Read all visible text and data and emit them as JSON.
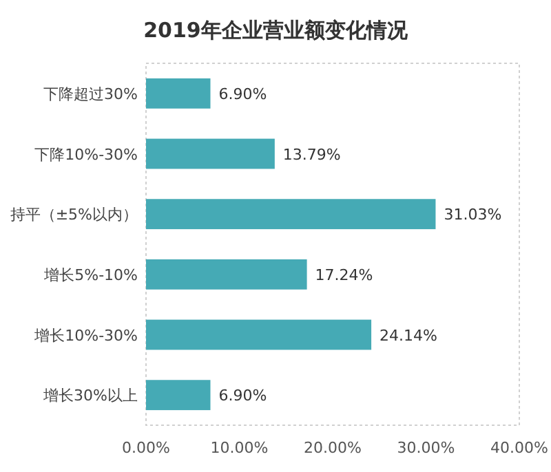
{
  "chart_data": {
    "type": "bar",
    "orientation": "horizontal",
    "title": "2019年企业营业额变化情况",
    "categories": [
      "下降超过30%",
      "下降10%-30%",
      "持平（±5%以内）",
      "增长5%-10%",
      "增长10%-30%",
      "增长30%以上"
    ],
    "values": [
      6.9,
      13.79,
      31.03,
      17.24,
      24.14,
      6.9
    ],
    "value_labels": [
      "6.90%",
      "13.79%",
      "31.03%",
      "17.24%",
      "24.14%",
      "6.90%"
    ],
    "color": "#45aab5",
    "xlim": [
      0,
      40
    ],
    "xticks": [
      {
        "value": 0,
        "label": "0.00%"
      },
      {
        "value": 10,
        "label": "10.00%"
      },
      {
        "value": 20,
        "label": "20.00%"
      },
      {
        "value": 30,
        "label": "30.00%"
      },
      {
        "value": 40,
        "label": "40.00%"
      }
    ]
  }
}
